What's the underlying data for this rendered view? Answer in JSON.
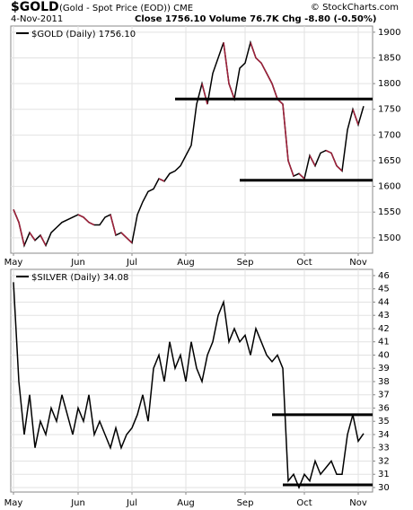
{
  "header": {
    "symbol": "$GOLD",
    "description": "(Gold - Spot Price (EOD)) CME",
    "date": "4-Nov-2011",
    "quote": "Close 1756.10  Volume 76.7K  Chg -8.80 (-0.50%)",
    "source": "© StockCharts.com"
  },
  "chart_data": [
    {
      "type": "line",
      "legend": "$GOLD (Daily) 1756.10",
      "categories": [
        "May",
        null,
        null,
        null,
        null,
        null,
        null,
        null,
        null,
        null,
        null,
        null,
        "Jun",
        null,
        null,
        null,
        null,
        null,
        null,
        null,
        null,
        null,
        "Jul",
        null,
        null,
        null,
        null,
        null,
        null,
        null,
        null,
        null,
        "Aug",
        null,
        null,
        null,
        null,
        null,
        null,
        null,
        null,
        null,
        null,
        "Sep",
        null,
        null,
        null,
        null,
        null,
        null,
        null,
        null,
        null,
        null,
        "Oct",
        null,
        null,
        null,
        null,
        null,
        null,
        null,
        null,
        null,
        "Nov",
        null
      ],
      "series": [
        {
          "name": "$GOLD",
          "color": "#000000",
          "down_color": "#a0203a",
          "values": [
            1555,
            1530,
            1485,
            1510,
            1495,
            1505,
            1485,
            1510,
            1520,
            1530,
            1535,
            1540,
            1545,
            1540,
            1530,
            1525,
            1525,
            1540,
            1545,
            1505,
            1510,
            1500,
            1490,
            1545,
            1570,
            1590,
            1595,
            1615,
            1610,
            1625,
            1630,
            1640,
            1660,
            1680,
            1760,
            1800,
            1760,
            1820,
            1850,
            1880,
            1800,
            1770,
            1830,
            1840,
            1880,
            1850,
            1840,
            1820,
            1800,
            1770,
            1760,
            1650,
            1620,
            1625,
            1615,
            1660,
            1640,
            1665,
            1670,
            1665,
            1640,
            1630,
            1710,
            1750,
            1720,
            1756.1
          ]
        }
      ],
      "ylim": [
        1470,
        1912
      ],
      "yticks": [
        1500,
        1550,
        1600,
        1650,
        1700,
        1750,
        1800,
        1850,
        1900
      ],
      "grid": true,
      "trendlines": [
        {
          "value": 1770,
          "start": 30
        },
        {
          "value": 1612,
          "start": 42
        }
      ]
    },
    {
      "type": "line",
      "legend": "$SILVER (Daily) 34.08",
      "categories": [
        "May",
        null,
        null,
        null,
        null,
        null,
        null,
        null,
        null,
        null,
        null,
        null,
        "Jun",
        null,
        null,
        null,
        null,
        null,
        null,
        null,
        null,
        null,
        "Jul",
        null,
        null,
        null,
        null,
        null,
        null,
        null,
        null,
        null,
        "Aug",
        null,
        null,
        null,
        null,
        null,
        null,
        null,
        null,
        null,
        null,
        "Sep",
        null,
        null,
        null,
        null,
        null,
        null,
        null,
        null,
        null,
        null,
        "Oct",
        null,
        null,
        null,
        null,
        null,
        null,
        null,
        null,
        null,
        "Nov",
        null
      ],
      "series": [
        {
          "name": "$SILVER",
          "color": "#000000",
          "values": [
            45.5,
            38,
            34,
            37,
            33,
            35,
            34,
            36,
            35,
            37,
            35.5,
            34,
            36,
            35,
            37,
            34,
            35,
            34,
            33,
            34.5,
            33,
            34,
            34.5,
            35.5,
            37,
            35,
            39,
            40,
            38,
            41,
            39,
            40,
            38,
            41,
            39,
            38,
            40,
            41,
            43,
            44,
            41,
            42,
            41,
            41.5,
            40,
            42,
            41,
            40,
            39.5,
            40,
            39,
            30.5,
            31,
            30,
            31,
            30.5,
            32,
            31,
            31.5,
            32,
            31,
            31,
            34,
            35.5,
            33.5,
            34.08
          ]
        }
      ],
      "ylim": [
        29.66,
        46.47
      ],
      "yticks": [
        30,
        31,
        32,
        33,
        34,
        35,
        36,
        37,
        38,
        39,
        40,
        41,
        42,
        43,
        44,
        45,
        46
      ],
      "grid": true,
      "trendlines": [
        {
          "value": 35.5,
          "start": 48
        },
        {
          "value": 30.2,
          "start": 50
        }
      ]
    }
  ]
}
